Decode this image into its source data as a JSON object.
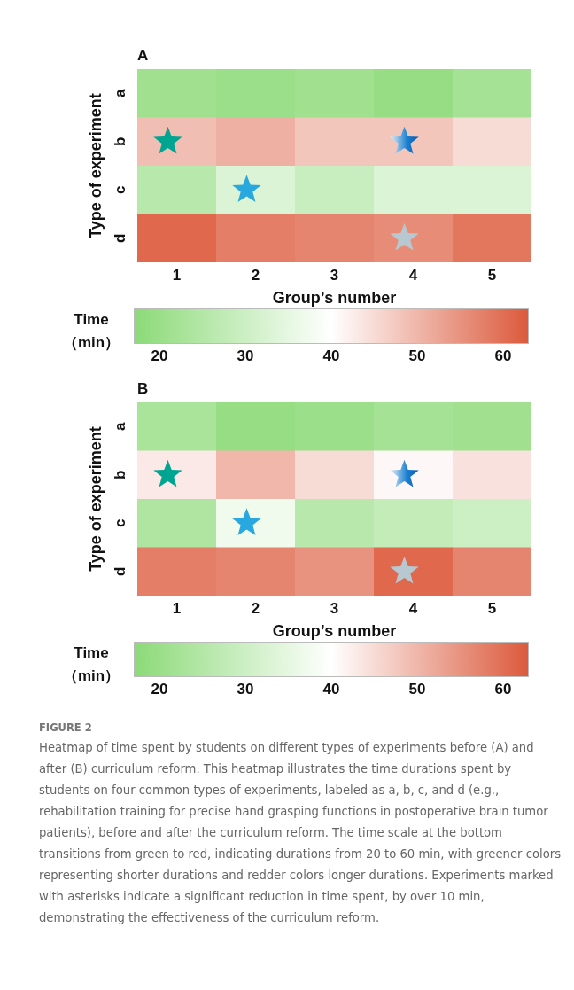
{
  "chart_data": [
    {
      "type": "heatmap",
      "title": "A",
      "xlabel": "Group’s number",
      "ylabel": "Type of experiment",
      "clabel": "Time（min）",
      "categories": [
        "1",
        "2",
        "3",
        "4",
        "5"
      ],
      "y_categories": [
        "a",
        "b",
        "c",
        "d"
      ],
      "cells": [
        [
          21,
          20,
          21,
          19,
          22
        ],
        [
          49,
          51,
          48,
          48,
          45
        ],
        [
          26,
          33,
          29,
          33,
          33
        ],
        [
          61,
          58,
          57,
          56,
          59
        ]
      ],
      "clim": [
        17,
        63
      ],
      "cticks": [
        20,
        30,
        40,
        50,
        60
      ]
    },
    {
      "type": "heatmap",
      "title": "B",
      "xlabel": "Group’s number",
      "ylabel": "Type of experiment",
      "clabel": "Time（min）",
      "categories": [
        "1",
        "2",
        "3",
        "4",
        "5"
      ],
      "y_categories": [
        "a",
        "b",
        "c",
        "d"
      ],
      "cells": [
        [
          23,
          19,
          20,
          22,
          21
        ],
        [
          43,
          50,
          45,
          41,
          44
        ],
        [
          24,
          37,
          26,
          28,
          30
        ],
        [
          58,
          57,
          55,
          61,
          57
        ]
      ],
      "clim": [
        17,
        63
      ],
      "cticks": [
        20,
        30,
        40,
        50,
        60
      ],
      "annotations": [
        "FIGURE 2",
        "Heatmap of time spent by students on different types of experiments before (A) and after (B) curriculum reform. This heatmap illustrates the time durations spent by students on four common types of experiments, labeled as a, b, c, and d (e.g., rehabilitation training for precise hand grasping functions in postoperative brain tumor patients), before and after the curriculum reform. The time scale at the bottom transitions from green to red, indicating durations from 20 to 60 min, with greener colors representing shorter durations and redder colors longer durations. Experiments marked with asterisks indicate a significant reduction in time spent, by over 10 min, demonstrating the effectiveness of the curriculum reform."
      ]
    }
  ]
}
